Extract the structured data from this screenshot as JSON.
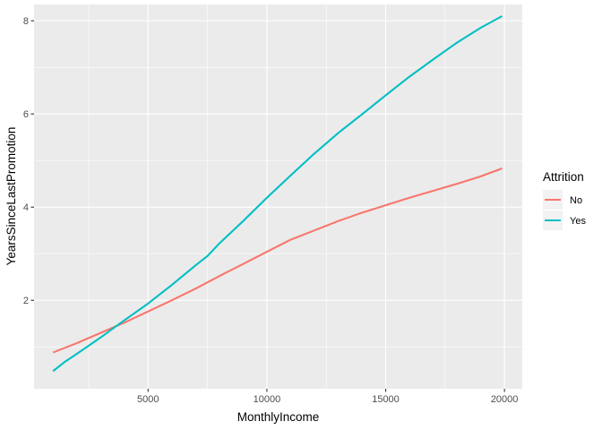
{
  "chart_data": {
    "type": "line",
    "xlabel": "MonthlyIncome",
    "ylabel": "YearsSinceLastPromotion",
    "xlim": [
      200,
      20750
    ],
    "ylim": [
      0.1,
      8.35
    ],
    "x_ticks": [
      5000,
      10000,
      15000,
      20000
    ],
    "y_ticks": [
      2,
      4,
      6,
      8
    ],
    "x_minor_ticks": [
      2500,
      7500,
      12500,
      17500
    ],
    "y_minor_ticks": [
      1,
      3,
      5,
      7
    ],
    "grid": true,
    "panel_background": "#ebebeb",
    "grid_color": "#ffffff",
    "legend": {
      "title": "Attrition",
      "placement": "right",
      "entries": [
        "No",
        "Yes"
      ]
    },
    "series": [
      {
        "name": "No",
        "color": "#F8766D",
        "x": [
          1000,
          2000,
          3000,
          4000,
          5000,
          6000,
          7000,
          8000,
          9000,
          10000,
          11000,
          12000,
          13000,
          14000,
          15000,
          16000,
          17000,
          18000,
          19000,
          19900
        ],
        "y": [
          0.88,
          1.08,
          1.3,
          1.52,
          1.76,
          2.0,
          2.25,
          2.52,
          2.78,
          3.04,
          3.3,
          3.5,
          3.7,
          3.88,
          4.04,
          4.2,
          4.35,
          4.5,
          4.66,
          4.83
        ]
      },
      {
        "name": "Yes",
        "color": "#00BFC4",
        "x": [
          1000,
          1500,
          2000,
          3000,
          4000,
          5000,
          6000,
          7000,
          7500,
          8000,
          9000,
          10000,
          11000,
          12000,
          13000,
          14000,
          15000,
          16000,
          17000,
          18000,
          19000,
          19900
        ],
        "y": [
          0.48,
          0.68,
          0.85,
          1.2,
          1.57,
          1.93,
          2.33,
          2.75,
          2.95,
          3.22,
          3.7,
          4.2,
          4.68,
          5.15,
          5.59,
          5.99,
          6.4,
          6.8,
          7.17,
          7.53,
          7.85,
          8.1
        ]
      }
    ]
  }
}
